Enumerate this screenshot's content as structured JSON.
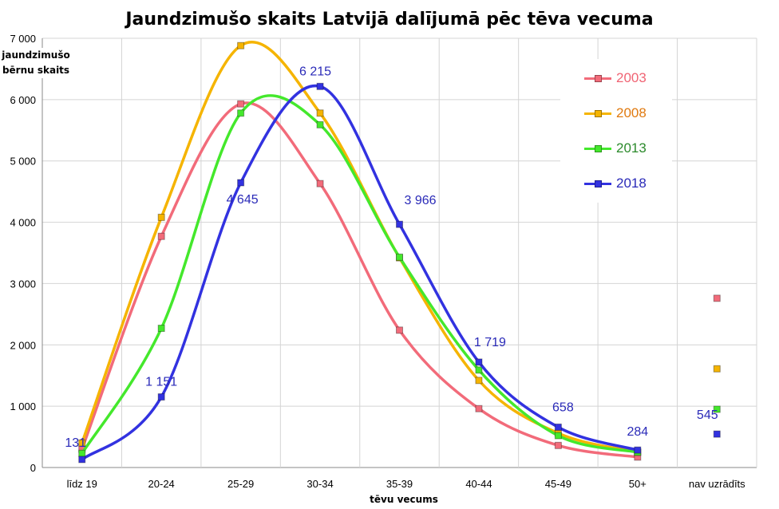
{
  "chart_data": {
    "type": "line",
    "title": "Jaundzimušo skaits Latvijā dalījumā pēc tēva vecuma",
    "xlabel": "tēvu vecums",
    "ylabel": "jaundzimušo bērnu skaits",
    "categories": [
      "līdz 19",
      "20-24",
      "25-29",
      "30-34",
      "35-39",
      "40-44",
      "45-49",
      "50+",
      "nav uzrādīts"
    ],
    "ylim": [
      0,
      7000
    ],
    "yticks": [
      0,
      1000,
      2000,
      3000,
      4000,
      5000,
      6000,
      7000
    ],
    "ytick_labels": [
      "0",
      "1 000",
      "2 000",
      "3 000",
      "4 000",
      "5 000",
      "6 000",
      "7 000"
    ],
    "grid": true,
    "legend_position": "top-right",
    "series": [
      {
        "name": "2003",
        "color": "#f26b7a",
        "values": [
          300,
          3770,
          5930,
          4630,
          2240,
          960,
          360,
          170,
          2760
        ]
      },
      {
        "name": "2008",
        "color": "#f5b400",
        "values": [
          400,
          4080,
          6880,
          5780,
          3420,
          1420,
          560,
          250,
          1610
        ]
      },
      {
        "name": "2013",
        "color": "#44e82c",
        "values": [
          230,
          2270,
          5780,
          5590,
          3430,
          1590,
          520,
          250,
          950
        ]
      },
      {
        "name": "2018",
        "color": "#3232e0",
        "values": [
          131,
          1151,
          4645,
          6215,
          3966,
          1719,
          658,
          284,
          545
        ]
      }
    ],
    "data_labels": {
      "series": "2018",
      "values": [
        "131",
        "1 151",
        "4 645",
        "6 215",
        "3 966",
        "1 719",
        "658",
        "284",
        "545"
      ]
    }
  }
}
